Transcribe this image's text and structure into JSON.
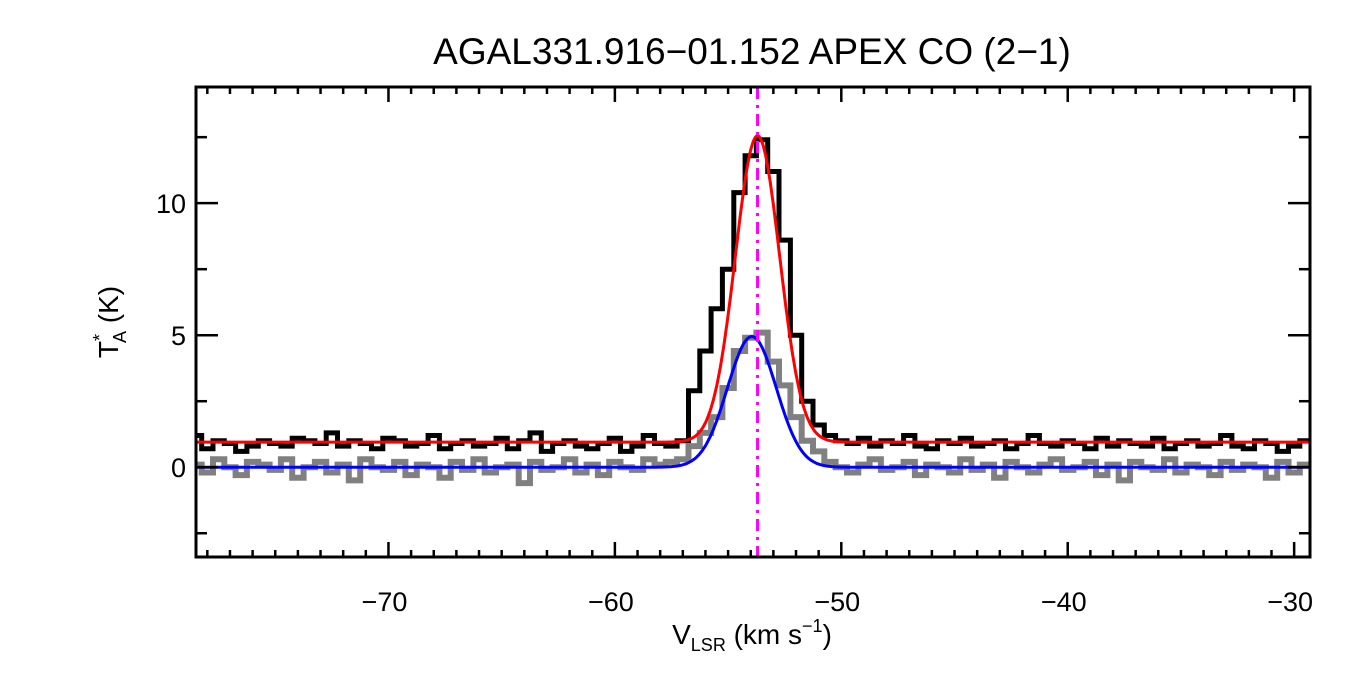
{
  "chart_data": {
    "type": "line",
    "title": "AGAL331.916−01.152  APEX CO (2−1)",
    "xlabel": {
      "main": "V",
      "sub": "LSR",
      "rest": " (km s",
      "sup": "−1",
      "end": ")"
    },
    "ylabel": {
      "main": "T",
      "sup": "*",
      "sub": "A",
      "rest": " (K)"
    },
    "xlim": [
      -78.5,
      -29.3
    ],
    "ylim": [
      -3.4,
      14.4
    ],
    "x_ticks": [
      -70,
      -60,
      -50,
      -40,
      -30
    ],
    "x_tick_labels": [
      "−70",
      "−60",
      "−50",
      "−40",
      "−30"
    ],
    "x_minor_step": 1,
    "y_ticks": [
      0,
      5,
      10
    ],
    "y_tick_labels": [
      "0",
      "5",
      "10"
    ],
    "y_minor_step": 2.5,
    "grid": false,
    "channel_start": -78.5,
    "channel_width": 0.5,
    "series": [
      {
        "color": "#000000",
        "style": "histogram",
        "values": [
          1.2,
          0.7,
          1.0,
          0.9,
          0.6,
          0.8,
          1.0,
          0.9,
          0.8,
          1.1,
          1.0,
          0.9,
          1.3,
          0.8,
          1.0,
          0.9,
          0.7,
          1.1,
          1.0,
          0.8,
          0.9,
          1.2,
          0.7,
          0.9,
          1.0,
          0.8,
          0.9,
          1.1,
          0.7,
          1.0,
          1.3,
          0.6,
          0.9,
          1.0,
          0.8,
          0.7,
          0.9,
          1.1,
          0.6,
          0.8,
          1.2,
          0.9,
          0.8,
          1.0,
          2.9,
          4.4,
          6.0,
          7.5,
          10.4,
          11.8,
          12.4,
          11.2,
          8.6,
          5.0,
          2.5,
          1.6,
          1.2,
          1.0,
          0.9,
          1.1,
          0.8,
          1.0,
          0.9,
          1.2,
          0.8,
          0.7,
          1.0,
          0.9,
          1.1,
          0.8,
          0.9,
          1.0,
          0.7,
          0.9,
          1.2,
          0.9,
          0.8,
          1.0,
          0.9,
          0.7,
          1.1,
          0.8,
          1.0,
          0.9,
          0.8,
          1.1,
          0.7,
          0.9,
          1.0,
          0.8,
          0.9,
          1.2,
          0.8,
          0.7,
          1.0,
          0.9,
          0.6,
          0.8,
          1.0
        ]
      },
      {
        "color": "#808080",
        "style": "histogram",
        "values": [
          0.1,
          -0.2,
          0.3,
          0.0,
          -0.3,
          0.2,
          0.1,
          -0.1,
          0.3,
          -0.4,
          0.0,
          0.2,
          -0.2,
          0.1,
          -0.5,
          0.3,
          0.0,
          -0.1,
          0.2,
          -0.3,
          0.1,
          0.0,
          -0.4,
          0.2,
          -0.1,
          0.3,
          -0.2,
          0.0,
          0.1,
          -0.6,
          0.2,
          -0.1,
          0.0,
          0.3,
          -0.2,
          0.1,
          -0.3,
          0.2,
          0.0,
          -0.1,
          0.3,
          0.1,
          0.2,
          0.3,
          0.8,
          1.3,
          1.9,
          3.0,
          4.4,
          4.9,
          5.1,
          4.0,
          3.1,
          1.9,
          1.0,
          0.6,
          0.2,
          0.0,
          -0.2,
          0.1,
          0.3,
          -0.1,
          0.0,
          0.2,
          -0.3,
          0.1,
          0.0,
          -0.2,
          0.3,
          -0.1,
          0.1,
          -0.4,
          0.2,
          0.0,
          -0.2,
          0.1,
          0.3,
          -0.1,
          0.0,
          0.2,
          -0.3,
          0.1,
          -0.5,
          0.2,
          0.0,
          -0.1,
          0.3,
          -0.2,
          0.1,
          0.0,
          -0.3,
          0.2,
          -0.1,
          0.1,
          0.0,
          -0.4,
          0.2,
          -0.2,
          0.1
        ]
      }
    ],
    "fits": [
      {
        "color": "#ff0000",
        "type": "gaussian",
        "baseline": 0.95,
        "amplitude": 11.6,
        "center": -53.7,
        "sigma": 0.98
      },
      {
        "color": "#0000ff",
        "type": "gaussian",
        "baseline": 0.0,
        "amplitude": 4.95,
        "center": -53.95,
        "sigma": 1.08
      }
    ],
    "vline": {
      "x": -53.7,
      "color": "#ff00ff",
      "style": "dash-dot"
    }
  }
}
